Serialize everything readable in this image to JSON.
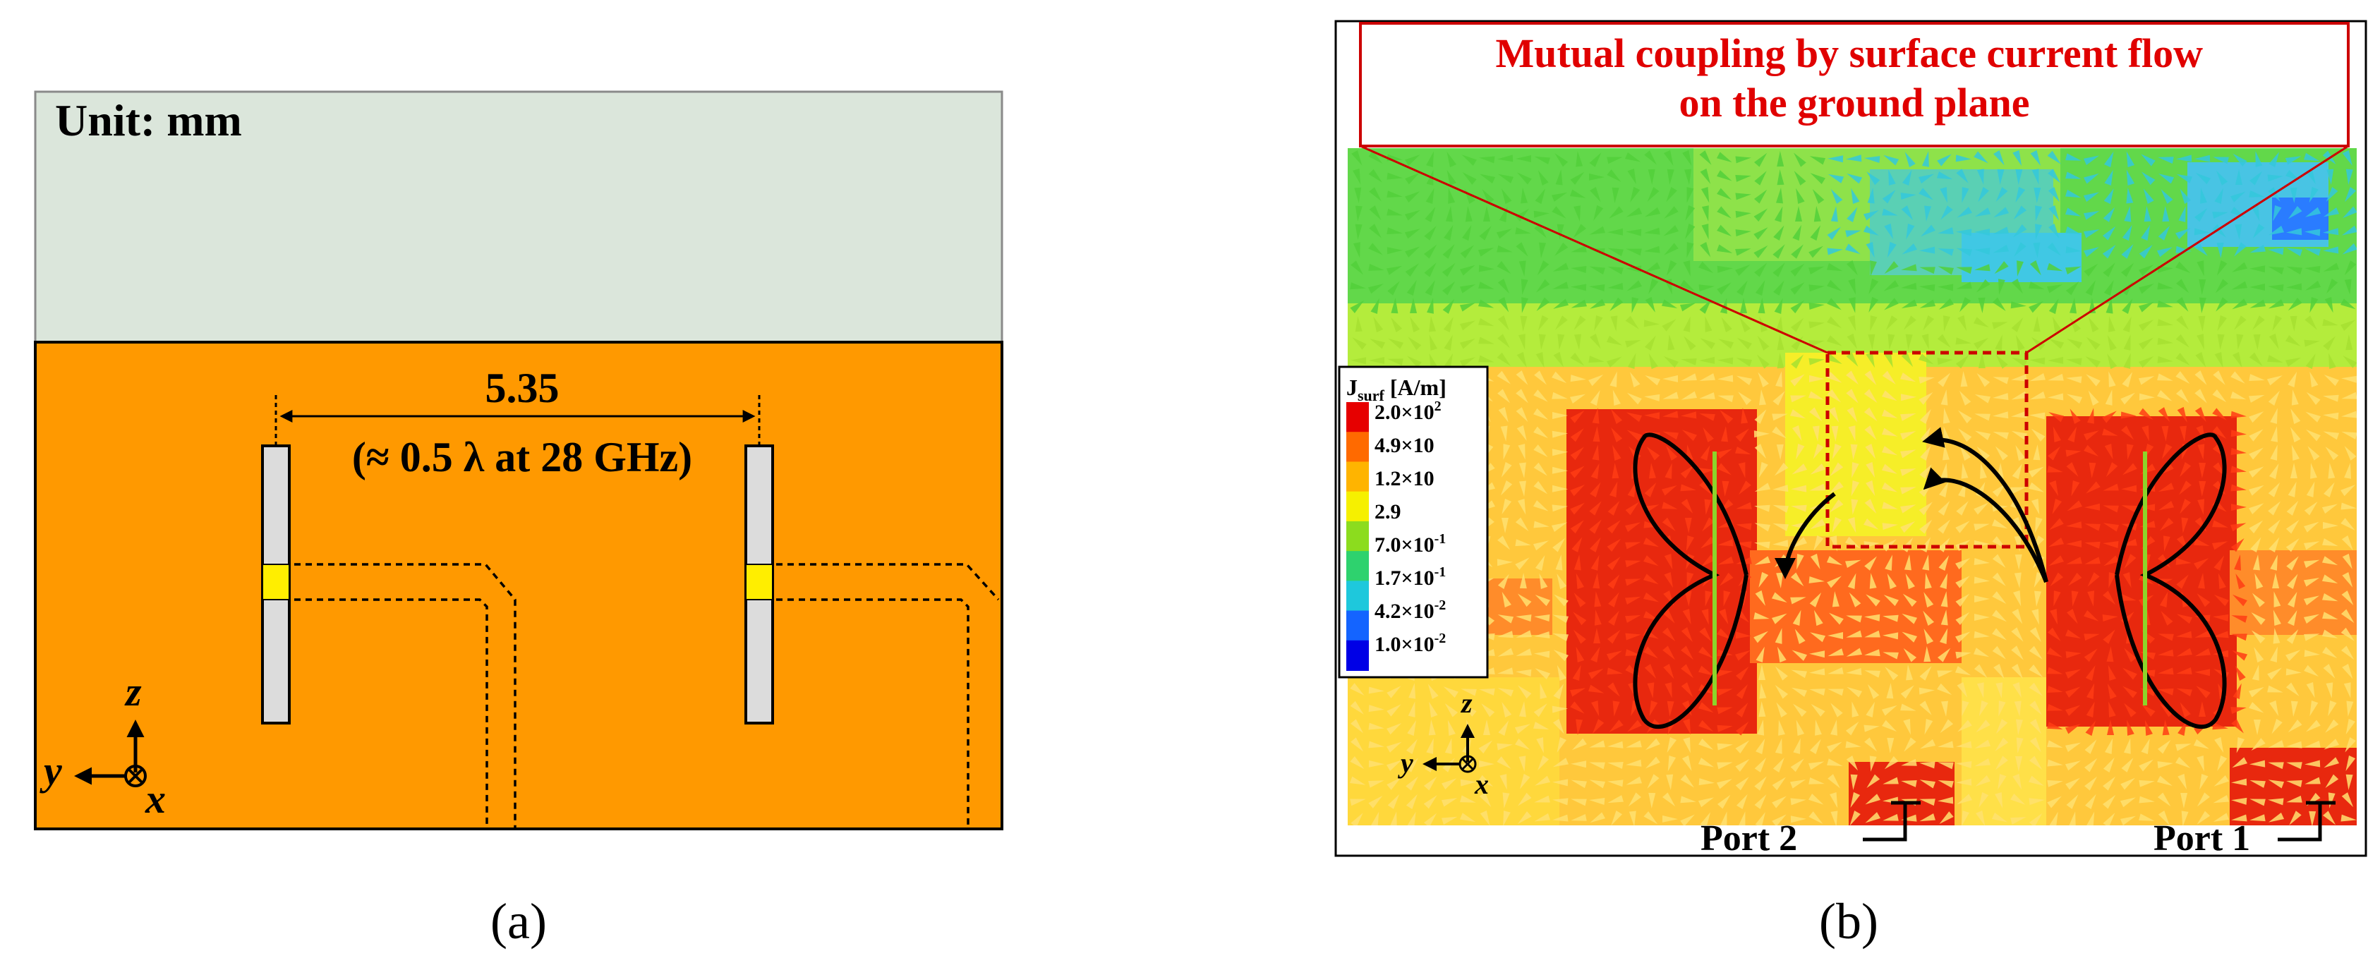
{
  "panel_a": {
    "unit_label": "Unit: mm",
    "dimension_value": "5.35",
    "dimension_note": "(≈ 0.5 λ at 28 GHz)",
    "axis_z": "z",
    "axis_y": "y",
    "axis_x": "x",
    "caption": "(a)",
    "colors": {
      "substrate": "#dbe6db",
      "ground": "#ff9900",
      "element": "#dcdcdc",
      "feed": "#ffee00"
    }
  },
  "panel_b": {
    "callout": "Mutual coupling by surface current flow\non the ground plane",
    "callout_line1": "Mutual coupling by surface current flow",
    "callout_line2": "on the ground plane",
    "legend_title_main": "J",
    "legend_title_sub": "surf",
    "legend_title_unit": " [A/m]",
    "legend_labels": [
      {
        "mant": "2.0×10",
        "exp": "2"
      },
      {
        "mant": "4.9×10",
        "exp": ""
      },
      {
        "mant": "1.2×10",
        "exp": ""
      },
      {
        "mant": "2.9",
        "exp": ""
      },
      {
        "mant": "7.0×10",
        "exp": "-1"
      },
      {
        "mant": "1.7×10",
        "exp": "-1"
      },
      {
        "mant": "4.2×10",
        "exp": "-2"
      },
      {
        "mant": "1.0×10",
        "exp": "-2"
      }
    ],
    "legend_colors": [
      "#e60000",
      "#ff6a00",
      "#ffb400",
      "#f6f000",
      "#8cdc1e",
      "#2ed26e",
      "#1ec8dc",
      "#1464ff",
      "#0000e6"
    ],
    "port2": "Port 2",
    "port1": "Port 1",
    "axis_z": "z",
    "axis_y": "y",
    "axis_x": "x",
    "caption": "(b)"
  }
}
